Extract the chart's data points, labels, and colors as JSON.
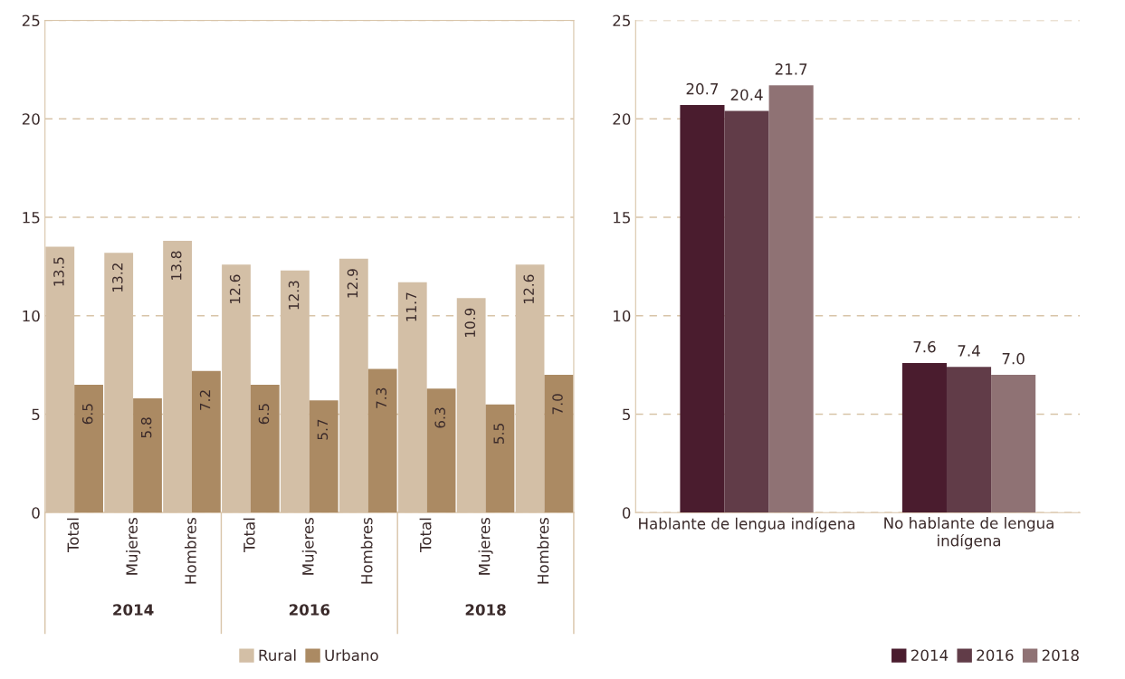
{
  "chart_data": [
    {
      "type": "bar",
      "categories": [
        "Total",
        "Mujeres",
        "Hombres",
        "Total",
        "Mujeres",
        "Hombres",
        "Total",
        "Mujeres",
        "Hombres"
      ],
      "series": [
        {
          "name": "Rural",
          "color": "#d3bfa6",
          "values": [
            13.5,
            13.2,
            13.8,
            12.6,
            12.3,
            12.9,
            11.7,
            10.9,
            12.6
          ],
          "value_labels": [
            "13.5",
            "13.2",
            "13.8",
            "12.6",
            "12.3",
            "12.9",
            "11.7",
            "10.9",
            "12.6"
          ]
        },
        {
          "name": "Urbano",
          "color": "#ab8a63",
          "values": [
            6.5,
            5.8,
            7.2,
            6.5,
            5.7,
            7.3,
            6.3,
            5.5,
            7.0
          ],
          "value_labels": [
            "6.5",
            "5.8",
            "7.2",
            "6.5",
            "5.7",
            "7.3",
            "6.3",
            "5.5",
            "7.0"
          ]
        }
      ],
      "annotations": [
        "2014",
        "2016",
        "2018"
      ],
      "ylim": [
        0,
        25
      ],
      "yticks": [
        0,
        5,
        10,
        15,
        20,
        25
      ],
      "grid": "y",
      "legend": "bottom"
    },
    {
      "type": "bar",
      "categories": [
        "Hablante de lengua indígena",
        "No hablante de lengua indígena"
      ],
      "series": [
        {
          "name": "2014",
          "color": "#4a1c2e",
          "values": [
            20.7,
            7.6
          ],
          "value_labels": [
            "20.7",
            "7.6"
          ]
        },
        {
          "name": "2016",
          "color": "#613c48",
          "values": [
            20.4,
            7.4
          ],
          "value_labels": [
            "20.4",
            "7.4"
          ]
        },
        {
          "name": "2018",
          "color": "#8f7274",
          "values": [
            21.7,
            7.0
          ],
          "value_labels": [
            "21.7",
            "7.0"
          ]
        }
      ],
      "ylim": [
        0,
        25
      ],
      "yticks": [
        0,
        5,
        10,
        15,
        20,
        25
      ],
      "grid": "y",
      "legend": "bottom right"
    }
  ]
}
